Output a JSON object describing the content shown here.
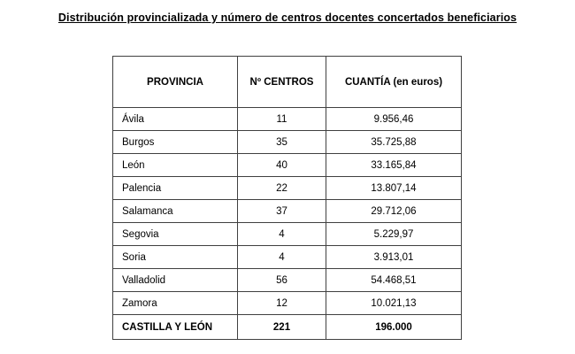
{
  "page": {
    "title": "Distribución provincializada y número de centros docentes concertados beneficiarios"
  },
  "colors": {
    "background": "#ffffff",
    "text": "#000000",
    "table_border": "#404040"
  },
  "table": {
    "headers": {
      "provincia": "PROVINCIA",
      "centros": "Nº CENTROS",
      "cuantia": "CUANTÍA (en euros)"
    },
    "rows": [
      {
        "provincia": "Ávila",
        "centros": "11",
        "cuantia": "9.956,46"
      },
      {
        "provincia": "Burgos",
        "centros": "35",
        "cuantia": "35.725,88"
      },
      {
        "provincia": "León",
        "centros": "40",
        "cuantia": "33.165,84"
      },
      {
        "provincia": "Palencia",
        "centros": "22",
        "cuantia": "13.807,14"
      },
      {
        "provincia": "Salamanca",
        "centros": "37",
        "cuantia": "29.712,06"
      },
      {
        "provincia": "Segovia",
        "centros": "4",
        "cuantia": "5.229,97"
      },
      {
        "provincia": "Soria",
        "centros": "4",
        "cuantia": "3.913,01"
      },
      {
        "provincia": "Valladolid",
        "centros": "56",
        "cuantia": "54.468,51"
      },
      {
        "provincia": "Zamora",
        "centros": "12",
        "cuantia": "10.021,13"
      }
    ],
    "total": {
      "provincia": "CASTILLA Y LEÓN",
      "centros": "221",
      "cuantia": "196.000"
    }
  }
}
